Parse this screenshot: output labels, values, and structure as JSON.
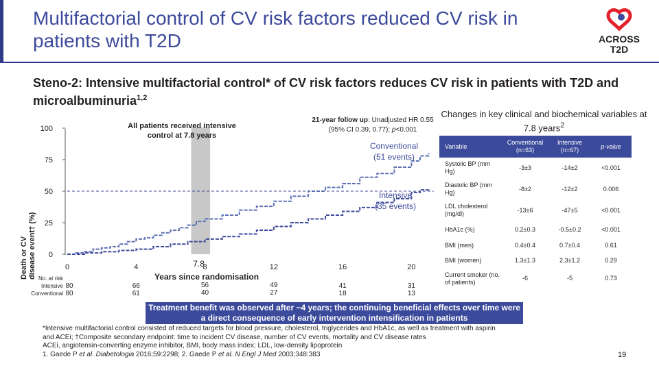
{
  "slide": {
    "title": "Multifactorial control of CV risk factors reduced CV risk in patients with T2D",
    "subtitle": "Steno-2: Intensive multifactorial control* of CV risk factors reduces CV risk in patients with T2D and microalbuminuria",
    "subtitle_ref": "1,2",
    "logo_text_1": "ACROSS",
    "logo_text_2": "T2D",
    "page_number": "19"
  },
  "colors": {
    "brand_blue": "#3c4a9b",
    "conventional_line": "#5a6fb5",
    "intensive_line": "#3c4a9b",
    "band": "#c8c8c8",
    "logo_red": "#e4202b"
  },
  "chart_data": {
    "type": "line",
    "ylabel_line1": "Death or CV",
    "ylabel_line2": "disease event† (%)",
    "xlabel": "Years since randomisation",
    "y_ticks": [
      "0",
      "25",
      "50",
      "75",
      "100"
    ],
    "x_ticks": [
      "0",
      "4",
      "8",
      "12",
      "16",
      "20"
    ],
    "band_label": "7.8",
    "ylim": [
      0,
      100
    ],
    "xlim": [
      0,
      21.3
    ],
    "annotation_band": "All patients received intensive control at 7.8 years",
    "annotation_followup_bold": "21-year follow up",
    "annotation_followup_rest": ": Unadjusted HR 0.55",
    "annotation_followup_ci": "(95% CI 0.39, 0.77); ",
    "annotation_followup_p": "p",
    "annotation_followup_pval": "<0.001",
    "series": [
      {
        "name": "Conventional (51 events)",
        "label_1": "Conventional",
        "label_2": "(51 events)",
        "x": [
          0,
          0.5,
          1,
          1.5,
          2,
          2.5,
          3,
          3.5,
          4,
          4.5,
          5,
          5.5,
          6,
          6.5,
          7,
          7.5,
          8,
          9,
          10,
          11,
          12,
          13,
          14,
          15,
          16,
          17,
          18,
          19,
          20,
          20.5,
          21
        ],
        "values": [
          0,
          1,
          2,
          4,
          5,
          6,
          8,
          10,
          12,
          13,
          15,
          17,
          19,
          21,
          23,
          26,
          28,
          31,
          35,
          38,
          42,
          46,
          50,
          53,
          56,
          61,
          64,
          69,
          74,
          78,
          80
        ]
      },
      {
        "name": "Intensive (35 events)",
        "label_1": "Intensive",
        "label_2": "(35 events)",
        "x": [
          0,
          1,
          2,
          3,
          4,
          5,
          6,
          7,
          8,
          9,
          10,
          11,
          12,
          13,
          14,
          15,
          16,
          17,
          18,
          19,
          20,
          20.5,
          21
        ],
        "values": [
          0,
          1,
          2,
          3,
          4,
          6,
          8,
          10,
          12,
          14,
          16,
          19,
          22,
          25,
          28,
          31,
          34,
          37,
          41,
          44,
          49,
          51,
          52
        ]
      }
    ],
    "reference_line_value": 50,
    "risk_table": {
      "header": "No. at risk",
      "rows": [
        {
          "label": "Intensive",
          "values": [
            "80",
            "66",
            "56",
            "49",
            "41",
            "31"
          ]
        },
        {
          "label": "Conventional",
          "values": [
            "80",
            "61",
            "40",
            "27",
            "18",
            "13"
          ]
        }
      ]
    }
  },
  "table": {
    "heading": "Changes in key clinical and biochemical variables at 7.8 years",
    "heading_sup": "2",
    "columns": [
      "Variable",
      "Conventional (n=63)",
      "Intensive (n=67)",
      "p-value"
    ],
    "rows": [
      {
        "variable": "Systolic BP (mm Hg)",
        "conventional": "-3±3",
        "intensive": "-14±2",
        "p": "<0.001"
      },
      {
        "variable": "Diastolic BP (mm Hg)",
        "conventional": "-8±2",
        "intensive": "-12±2",
        "p": "0.006"
      },
      {
        "variable": "LDL cholesterol (mg/dl)",
        "conventional": "-13±6",
        "intensive": "-47±5",
        "p": "<0.001"
      },
      {
        "variable": "HbA1c (%)",
        "conventional": "0.2±0.3",
        "intensive": "-0.5±0.2",
        "p": "<0.001"
      },
      {
        "variable": "BMI (men)",
        "conventional": "0.4±0.4",
        "intensive": "0.7±0.4",
        "p": "0.61"
      },
      {
        "variable": "BMI (women)",
        "conventional": "1.3±1.3",
        "intensive": "2.3±1.2",
        "p": "0.29"
      },
      {
        "variable": "Current smoker (no. of patients)",
        "conventional": "-6",
        "intensive": "-5",
        "p": "0.73"
      }
    ]
  },
  "benefit_box": "Treatment benefit was observed after ~4 years; the continuing beneficial effects over time were a direct consequence of early intervention intensification in patients",
  "footnotes": {
    "line1": "*Intensive multifactorial control consisted of reduced targets for blood pressure, cholesterol, triglycerides and HbA1c, as well as treatment with aspirin",
    "line2": "and ACEi; †Composite secondary endpoint: time to incident CV disease, number of CV events, mortality and CV disease rates",
    "line3": "ACEi, angiotensin-converting enzyme inhibitor, BMI, body mass index; LDL, low-density lipoprotein",
    "line4_a": "1. Gaede P ",
    "line4_b": "et al. Diabetologia",
    "line4_c": " 2016;59:2298; 2. Gaede P ",
    "line4_d": "et al. N Engl J Med",
    "line4_e": " 2003;348:383"
  }
}
